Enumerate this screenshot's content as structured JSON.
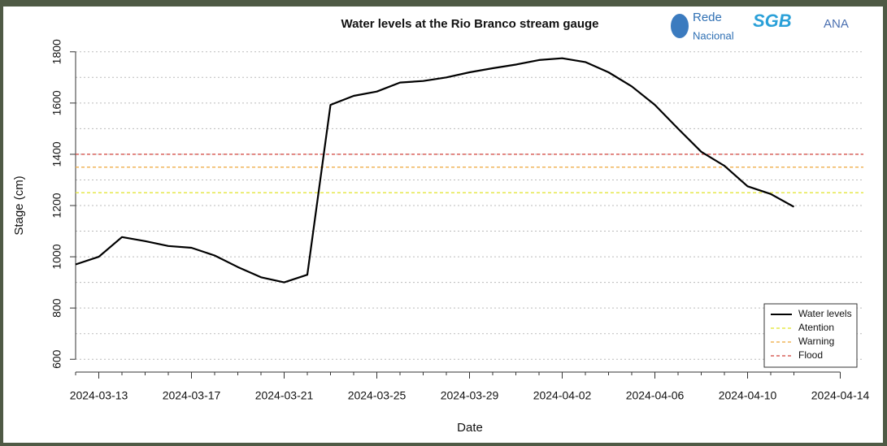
{
  "chart_data": {
    "type": "line",
    "title": "Water levels at the Rio Branco stream gauge",
    "xlabel": "Date",
    "ylabel": "Stage (cm)",
    "x": [
      "2024-03-12",
      "2024-03-13",
      "2024-03-14",
      "2024-03-15",
      "2024-03-16",
      "2024-03-17",
      "2024-03-18",
      "2024-03-19",
      "2024-03-20",
      "2024-03-21",
      "2024-03-22",
      "2024-03-23",
      "2024-03-24",
      "2024-03-25",
      "2024-03-26",
      "2024-03-27",
      "2024-03-28",
      "2024-03-29",
      "2024-03-30",
      "2024-03-31",
      "2024-04-01",
      "2024-04-02",
      "2024-04-03",
      "2024-04-04",
      "2024-04-05",
      "2024-04-06",
      "2024-04-07",
      "2024-04-08",
      "2024-04-09",
      "2024-04-10",
      "2024-04-11",
      "2024-04-12"
    ],
    "series": [
      {
        "name": "Water levels",
        "color": "#000000",
        "values": [
          970,
          1000,
          1077,
          1061,
          1042,
          1035,
          1005,
          960,
          920,
          900,
          930,
          1593,
          1628,
          1645,
          1680,
          1686,
          1700,
          1720,
          1736,
          1750,
          1768,
          1775,
          1760,
          1720,
          1665,
          1593,
          1500,
          1410,
          1355,
          1275,
          1245,
          1195
        ]
      }
    ],
    "thresholds": [
      {
        "name": "Atention",
        "value": 1250,
        "color": "#e6e84a"
      },
      {
        "name": "Warning",
        "value": 1350,
        "color": "#f0b55a"
      },
      {
        "name": "Flood",
        "value": 1400,
        "color": "#d9605a"
      }
    ],
    "xlim": [
      "2024-03-12",
      "2024-04-15"
    ],
    "xticks": [
      "2024-03-13",
      "2024-03-17",
      "2024-03-21",
      "2024-03-25",
      "2024-03-29",
      "2024-04-02",
      "2024-04-06",
      "2024-04-10",
      "2024-04-14"
    ],
    "ylim": [
      550,
      1850
    ],
    "yticks": [
      600,
      800,
      1000,
      1200,
      1400,
      1600,
      1800
    ],
    "ygrid": [
      600,
      700,
      800,
      900,
      1000,
      1100,
      1200,
      1300,
      1400,
      1500,
      1600,
      1700,
      1800
    ],
    "legend": "bottom-right"
  },
  "logos": [
    "Rede",
    "Nacional",
    "SGB",
    "ANA"
  ]
}
